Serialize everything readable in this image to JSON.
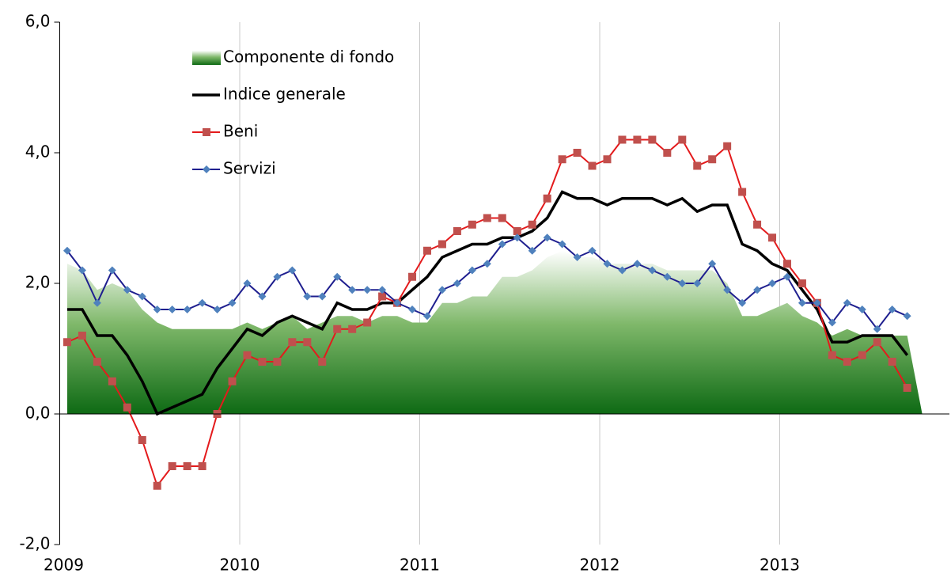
{
  "chart_data": {
    "type": "line",
    "categories": [
      "2009",
      null,
      null,
      null,
      null,
      null,
      null,
      null,
      null,
      null,
      null,
      null,
      "2010",
      null,
      null,
      null,
      null,
      null,
      null,
      null,
      null,
      null,
      null,
      null,
      "2011",
      null,
      null,
      null,
      null,
      null,
      null,
      null,
      null,
      null,
      null,
      null,
      "2012",
      null,
      null,
      null,
      null,
      null,
      null,
      null,
      null,
      null,
      null,
      null,
      "2013",
      null,
      null,
      null,
      null,
      null,
      null,
      null,
      null
    ],
    "ylim": [
      -2,
      6
    ],
    "yticks": [
      {
        "value": -2,
        "label": "-2,0"
      },
      {
        "value": 0,
        "label": "0,0"
      },
      {
        "value": 2,
        "label": "2,0"
      },
      {
        "value": 4,
        "label": "4,0"
      },
      {
        "value": 6,
        "label": "6,0"
      }
    ],
    "grid": true,
    "legend": "upper-left",
    "series": [
      {
        "name": "Componente di fondo",
        "kind": "area",
        "color": "#1f7a1f",
        "values": [
          2.3,
          2.2,
          1.9,
          2.0,
          1.9,
          1.6,
          1.4,
          1.3,
          1.3,
          1.3,
          1.3,
          1.3,
          1.4,
          1.3,
          1.4,
          1.5,
          1.3,
          1.4,
          1.5,
          1.5,
          1.4,
          1.5,
          1.5,
          1.4,
          1.4,
          1.7,
          1.7,
          1.8,
          1.8,
          2.1,
          2.1,
          2.2,
          2.4,
          2.5,
          2.4,
          2.4,
          2.3,
          2.3,
          2.3,
          2.3,
          2.2,
          2.2,
          2.2,
          2.2,
          2.0,
          1.5,
          1.5,
          1.6,
          1.7,
          1.5,
          1.4,
          1.2,
          1.3,
          1.2,
          1.2,
          1.2,
          1.2
        ]
      },
      {
        "name": "Indice generale",
        "kind": "line",
        "color": "#000000",
        "values": [
          1.6,
          1.6,
          1.2,
          1.2,
          0.9,
          0.5,
          0.0,
          0.1,
          0.2,
          0.3,
          0.7,
          1.0,
          1.3,
          1.2,
          1.4,
          1.5,
          1.4,
          1.3,
          1.7,
          1.6,
          1.6,
          1.7,
          1.7,
          1.9,
          2.1,
          2.4,
          2.5,
          2.6,
          2.6,
          2.7,
          2.7,
          2.8,
          3.0,
          3.4,
          3.3,
          3.3,
          3.2,
          3.3,
          3.3,
          3.3,
          3.2,
          3.3,
          3.1,
          3.2,
          3.2,
          2.6,
          2.5,
          2.3,
          2.2,
          1.9,
          1.6,
          1.1,
          1.1,
          1.2,
          1.2,
          1.2,
          0.9
        ]
      },
      {
        "name": "Beni",
        "kind": "square",
        "color": "#e41a1c",
        "values": [
          1.1,
          1.2,
          0.8,
          0.5,
          0.1,
          -0.4,
          -1.1,
          -0.8,
          -0.8,
          -0.8,
          0.0,
          0.5,
          0.9,
          0.8,
          0.8,
          1.1,
          1.1,
          0.8,
          1.3,
          1.3,
          1.4,
          1.8,
          1.7,
          2.1,
          2.5,
          2.6,
          2.8,
          2.9,
          3.0,
          3.0,
          2.8,
          2.9,
          3.3,
          3.9,
          4.0,
          3.8,
          3.9,
          4.2,
          4.2,
          4.2,
          4.0,
          4.2,
          3.8,
          3.9,
          4.1,
          3.4,
          2.9,
          2.7,
          2.3,
          2.0,
          1.7,
          0.9,
          0.8,
          0.9,
          1.1,
          0.8,
          0.4
        ]
      },
      {
        "name": "Servizi",
        "kind": "diamond",
        "color": "#1f1f8f",
        "values": [
          2.5,
          2.2,
          1.7,
          2.2,
          1.9,
          1.8,
          1.6,
          1.6,
          1.6,
          1.7,
          1.6,
          1.7,
          2.0,
          1.8,
          2.1,
          2.2,
          1.8,
          1.8,
          2.1,
          1.9,
          1.9,
          1.9,
          1.7,
          1.6,
          1.5,
          1.9,
          2.0,
          2.2,
          2.3,
          2.6,
          2.7,
          2.5,
          2.7,
          2.6,
          2.4,
          2.5,
          2.3,
          2.2,
          2.3,
          2.2,
          2.1,
          2.0,
          2.0,
          2.3,
          1.9,
          1.7,
          1.9,
          2.0,
          2.1,
          1.7,
          1.7,
          1.4,
          1.7,
          1.6,
          1.3,
          1.6,
          1.5
        ]
      }
    ]
  }
}
